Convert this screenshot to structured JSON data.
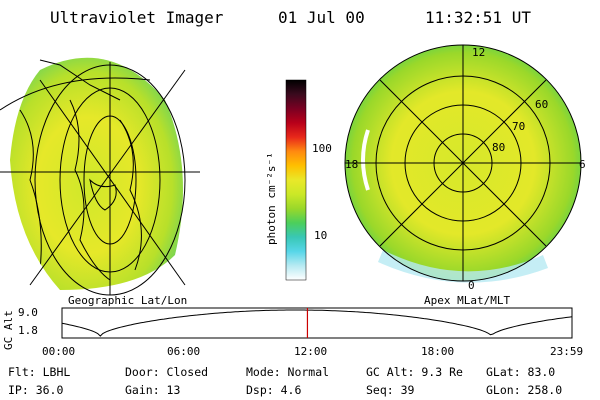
{
  "header": {
    "instrument": "Ultraviolet Imager",
    "date": "01 Jul 00",
    "time": "11:32:51 UT"
  },
  "colorbar": {
    "unit_label": "photon cm⁻²s⁻¹",
    "ticks": [
      "100",
      "10"
    ],
    "colors": [
      "#000000",
      "#3a0a1e",
      "#7a0022",
      "#b8001a",
      "#e8281a",
      "#ff8a10",
      "#ffc000",
      "#e9e829",
      "#cbe827",
      "#9ad82a",
      "#4ccf5b",
      "#39c7b5",
      "#57d6e8",
      "#b7eaf2",
      "#ffffff"
    ]
  },
  "left_panel": {
    "label": "Geographic Lat/Lon"
  },
  "right_panel": {
    "label": "Apex MLat/MLT",
    "mlt_labels": {
      "top": "12",
      "left": "18",
      "right": "6",
      "bottom": "0"
    },
    "lat_labels": [
      "60",
      "70",
      "80"
    ]
  },
  "timeline": {
    "y_axis_label": "GC Alt",
    "y_ticks": [
      "9.0",
      "1.8"
    ],
    "x_ticks": [
      "00:00",
      "06:00",
      "12:00",
      "18:00",
      "23:59"
    ],
    "current_time_hours": 11.55,
    "alt_min": 1.8,
    "alt_max": 9.0,
    "marker_color": "#cc0000"
  },
  "info": {
    "filter": "Flt: LBHL",
    "ip": "IP: 36.0",
    "door": "Door: Closed",
    "gain": "Gain: 13",
    "mode": "Mode: Normal",
    "dsp": "Dsp:    4.6",
    "gc_alt": "GC Alt: 9.3 Re",
    "seq": "Seq: 39",
    "glat": "GLat:  83.0",
    "glon": "GLon: 258.0"
  }
}
